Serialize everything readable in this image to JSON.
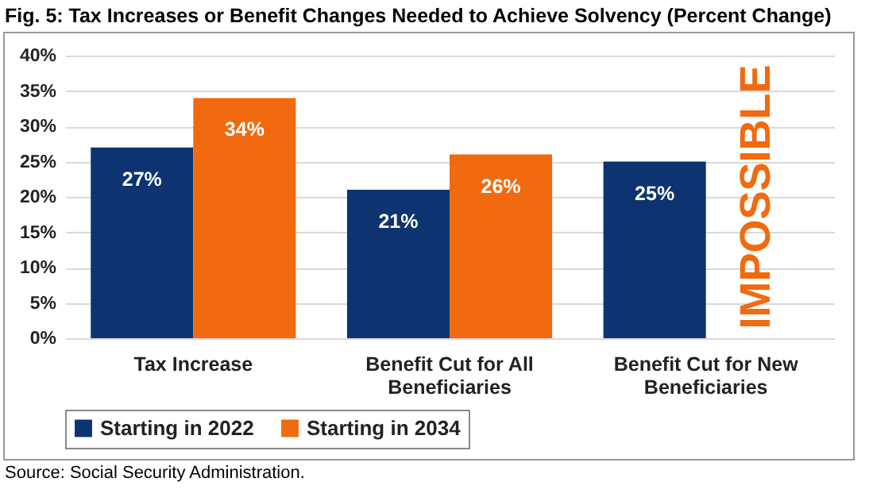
{
  "chart_data": {
    "type": "bar",
    "title": "Fig. 5: Tax Increases or Benefit Changes Needed to Achieve Solvency (Percent Change)",
    "categories": [
      "Tax Increase",
      "Benefit Cut for All Beneficiaries",
      "Benefit Cut for New Beneficiaries"
    ],
    "series": [
      {
        "name": "Starting in 2022",
        "color": "#0d3470",
        "values": [
          27,
          21,
          25
        ],
        "value_labels": [
          "27%",
          "21%",
          "25%"
        ]
      },
      {
        "name": "Starting in 2034",
        "color": "#f26a0f",
        "values": [
          34,
          26,
          null
        ],
        "value_labels": [
          "34%",
          "26%",
          null
        ]
      }
    ],
    "ylim": [
      0,
      40
    ],
    "yticks": [
      {
        "value": 0,
        "label": "0%"
      },
      {
        "value": 5,
        "label": "5%"
      },
      {
        "value": 10,
        "label": "10%"
      },
      {
        "value": 15,
        "label": "15%"
      },
      {
        "value": 20,
        "label": "20%"
      },
      {
        "value": 25,
        "label": "25%"
      },
      {
        "value": 30,
        "label": "30%"
      },
      {
        "value": 35,
        "label": "35%"
      },
      {
        "value": 40,
        "label": "40%"
      }
    ],
    "grid": "y",
    "legend": "bottom",
    "annotations": [
      {
        "text": "IMPOSSIBLE",
        "x": "Benefit Cut for New Beneficiaries",
        "y": 20
      },
      "Source: Social Security Administration."
    ]
  }
}
